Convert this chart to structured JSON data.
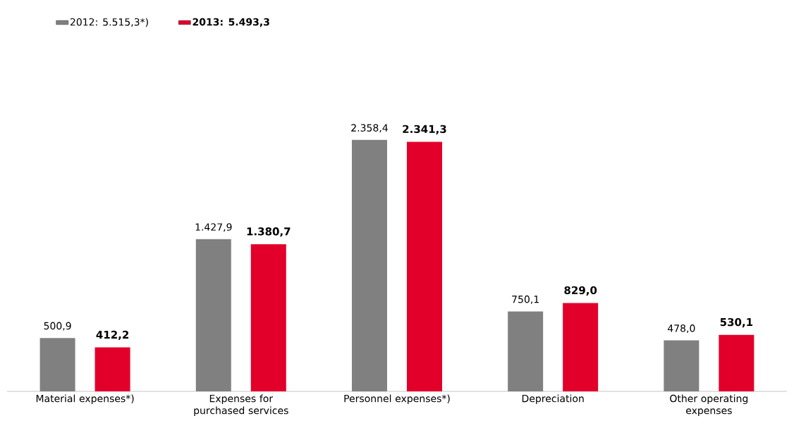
{
  "chart_data": {
    "type": "bar",
    "categories": [
      "Material expenses*)",
      "Expenses for purchased services",
      "Personnel expenses*)",
      "Depreciation",
      "Other operating expenses"
    ],
    "series": [
      {
        "name": "2012: 5.515,3*)",
        "color": "#808080",
        "values": [
          500.9,
          1427.9,
          2358.4,
          750.1,
          478.0
        ],
        "value_labels": [
          "500,9",
          "1.427,9",
          "2.358,4",
          "750,1",
          "478,0"
        ]
      },
      {
        "name": "2013: 5.493,3",
        "color": "#e2002a",
        "values": [
          412.2,
          1380.7,
          2341.3,
          829.0,
          530.1
        ],
        "value_labels": [
          "412,2",
          "1.380,7",
          "2.341,3",
          "829,0",
          "530,1"
        ]
      }
    ],
    "legend": "top left"
  }
}
